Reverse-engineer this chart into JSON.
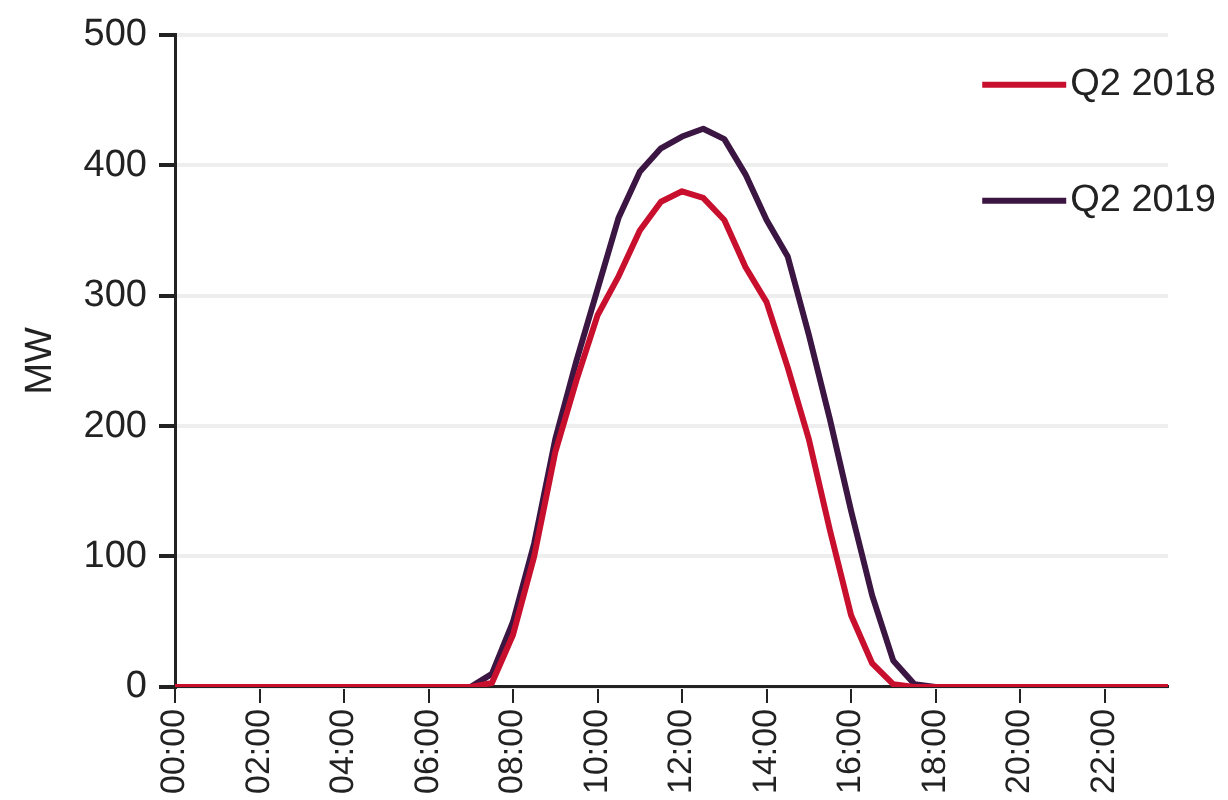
{
  "chart_data": {
    "type": "line",
    "ylabel": "MW",
    "x": [
      0,
      0.5,
      1,
      1.5,
      2,
      2.5,
      3,
      3.5,
      4,
      4.5,
      5,
      5.5,
      6,
      6.5,
      7,
      7.5,
      8,
      8.5,
      9,
      9.5,
      10,
      10.5,
      11,
      11.5,
      12,
      12.5,
      13,
      13.5,
      14,
      14.5,
      15,
      15.5,
      16,
      16.5,
      17,
      17.5,
      18,
      18.5,
      19,
      19.5,
      20,
      20.5,
      21,
      21.5,
      22,
      22.5,
      23,
      23.5
    ],
    "series": [
      {
        "name": "Q2 2018",
        "color": "#c8102e",
        "values": [
          0,
          0,
          0,
          0,
          0,
          0,
          0,
          0,
          0,
          0,
          0,
          0,
          0,
          0,
          0,
          3,
          40,
          100,
          180,
          235,
          285,
          315,
          350,
          372,
          380,
          375,
          358,
          322,
          295,
          245,
          190,
          120,
          55,
          18,
          2,
          0,
          0,
          0,
          0,
          0,
          0,
          0,
          0,
          0,
          0,
          0,
          0,
          0
        ]
      },
      {
        "name": "Q2 2019",
        "color": "#3c1642",
        "values": [
          0,
          0,
          0,
          0,
          0,
          0,
          0,
          0,
          0,
          0,
          0,
          0,
          0,
          0,
          0,
          10,
          50,
          110,
          190,
          250,
          305,
          360,
          395,
          413,
          422,
          428,
          420,
          393,
          358,
          330,
          270,
          205,
          135,
          70,
          20,
          2,
          0,
          0,
          0,
          0,
          0,
          0,
          0,
          0,
          0,
          0,
          0,
          0
        ]
      }
    ],
    "xlim": [
      0,
      23.5
    ],
    "xticks": [
      {
        "value": 0,
        "label": "00:00"
      },
      {
        "value": 2,
        "label": "02:00"
      },
      {
        "value": 4,
        "label": "04:00"
      },
      {
        "value": 6,
        "label": "06:00"
      },
      {
        "value": 8,
        "label": "08:00"
      },
      {
        "value": 10,
        "label": "10:00"
      },
      {
        "value": 12,
        "label": "12:00"
      },
      {
        "value": 14,
        "label": "14:00"
      },
      {
        "value": 16,
        "label": "16:00"
      },
      {
        "value": 18,
        "label": "18:00"
      },
      {
        "value": 20,
        "label": "20:00"
      },
      {
        "value": 22,
        "label": "22:00"
      }
    ],
    "ylim": [
      0,
      500
    ],
    "yticks": [
      0,
      100,
      200,
      300,
      400,
      500
    ],
    "grid": "y",
    "legend": "top right",
    "marker": "none",
    "line_style": "solid"
  }
}
